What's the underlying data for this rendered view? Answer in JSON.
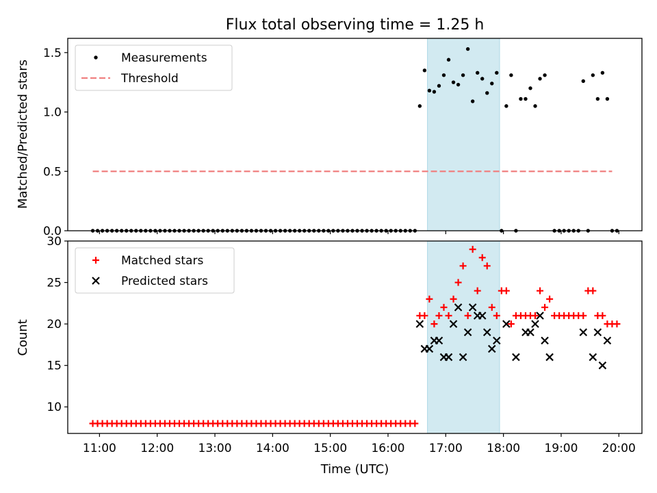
{
  "figure": {
    "title": "Flux total observing time = 1.25 h",
    "xlabel": "Time (UTC)",
    "x_ticks": [
      "11:00",
      "12:00",
      "13:00",
      "14:00",
      "15:00",
      "16:00",
      "17:00",
      "18:00",
      "19:00",
      "20:00"
    ],
    "colors": {
      "threshold": "#f08080",
      "matched": "#ff0000",
      "predicted": "#000000",
      "measurements": "#000000",
      "highlight": "#add8e6"
    }
  },
  "chart_data": [
    {
      "type": "scatter",
      "panel": "top",
      "ylabel": "Matched/Predicted stars",
      "ylim": [
        0,
        1.62
      ],
      "y_ticks": [
        "0.0",
        "0.5",
        "1.0",
        "1.5"
      ],
      "xlim": [
        "10:27",
        "20:24"
      ],
      "highlight_span": [
        "16:41",
        "17:56"
      ],
      "legend_position": "upper-left",
      "series": [
        {
          "name": "Measurements",
          "marker": "dot",
          "points": [
            [
              "10:53",
              0
            ],
            [
              "10:58",
              0
            ],
            [
              "11:03",
              0
            ],
            [
              "11:08",
              0
            ],
            [
              "11:13",
              0
            ],
            [
              "11:18",
              0
            ],
            [
              "11:23",
              0
            ],
            [
              "11:28",
              0
            ],
            [
              "11:33",
              0
            ],
            [
              "11:38",
              0
            ],
            [
              "11:43",
              0
            ],
            [
              "11:48",
              0
            ],
            [
              "11:53",
              0
            ],
            [
              "11:58",
              0
            ],
            [
              "12:03",
              0
            ],
            [
              "12:08",
              0
            ],
            [
              "12:13",
              0
            ],
            [
              "12:18",
              0
            ],
            [
              "12:23",
              0
            ],
            [
              "12:28",
              0
            ],
            [
              "12:33",
              0
            ],
            [
              "12:38",
              0
            ],
            [
              "12:43",
              0
            ],
            [
              "12:48",
              0
            ],
            [
              "12:53",
              0
            ],
            [
              "12:58",
              0
            ],
            [
              "13:03",
              0
            ],
            [
              "13:08",
              0
            ],
            [
              "13:13",
              0
            ],
            [
              "13:18",
              0
            ],
            [
              "13:23",
              0
            ],
            [
              "13:28",
              0
            ],
            [
              "13:33",
              0
            ],
            [
              "13:38",
              0
            ],
            [
              "13:43",
              0
            ],
            [
              "13:48",
              0
            ],
            [
              "13:53",
              0
            ],
            [
              "13:58",
              0
            ],
            [
              "14:03",
              0
            ],
            [
              "14:08",
              0
            ],
            [
              "14:13",
              0
            ],
            [
              "14:18",
              0
            ],
            [
              "14:23",
              0
            ],
            [
              "14:28",
              0
            ],
            [
              "14:33",
              0
            ],
            [
              "14:38",
              0
            ],
            [
              "14:43",
              0
            ],
            [
              "14:48",
              0
            ],
            [
              "14:53",
              0
            ],
            [
              "14:58",
              0
            ],
            [
              "15:03",
              0
            ],
            [
              "15:08",
              0
            ],
            [
              "15:13",
              0
            ],
            [
              "15:18",
              0
            ],
            [
              "15:23",
              0
            ],
            [
              "15:28",
              0
            ],
            [
              "15:33",
              0
            ],
            [
              "15:38",
              0
            ],
            [
              "15:43",
              0
            ],
            [
              "15:48",
              0
            ],
            [
              "15:53",
              0
            ],
            [
              "15:58",
              0
            ],
            [
              "16:03",
              0
            ],
            [
              "16:08",
              0
            ],
            [
              "16:13",
              0
            ],
            [
              "16:18",
              0
            ],
            [
              "16:23",
              0
            ],
            [
              "16:28",
              0
            ],
            [
              "16:33",
              1.05
            ],
            [
              "16:38",
              1.35
            ],
            [
              "16:43",
              1.18
            ],
            [
              "16:48",
              1.17
            ],
            [
              "16:53",
              1.22
            ],
            [
              "16:58",
              1.31
            ],
            [
              "17:03",
              1.44
            ],
            [
              "17:08",
              1.25
            ],
            [
              "17:13",
              1.23
            ],
            [
              "17:18",
              1.31
            ],
            [
              "17:23",
              1.53
            ],
            [
              "17:28",
              1.09
            ],
            [
              "17:33",
              1.33
            ],
            [
              "17:38",
              1.28
            ],
            [
              "17:43",
              1.16
            ],
            [
              "17:48",
              1.24
            ],
            [
              "17:53",
              1.33
            ],
            [
              "17:58",
              0
            ],
            [
              "18:03",
              1.05
            ],
            [
              "18:08",
              1.31
            ],
            [
              "18:13",
              0
            ],
            [
              "18:18",
              1.11
            ],
            [
              "18:23",
              1.11
            ],
            [
              "18:28",
              1.2
            ],
            [
              "18:33",
              1.05
            ],
            [
              "18:38",
              1.28
            ],
            [
              "18:43",
              1.31
            ],
            [
              "18:53",
              0
            ],
            [
              "18:58",
              0
            ],
            [
              "19:03",
              0
            ],
            [
              "19:08",
              0
            ],
            [
              "19:13",
              0
            ],
            [
              "19:18",
              0
            ],
            [
              "19:23",
              1.26
            ],
            [
              "19:28",
              0
            ],
            [
              "19:33",
              1.31
            ],
            [
              "19:38",
              1.11
            ],
            [
              "19:43",
              1.33
            ],
            [
              "19:48",
              1.11
            ],
            [
              "19:53",
              0
            ],
            [
              "19:58",
              0
            ]
          ]
        },
        {
          "name": "Threshold",
          "marker": "dashed-line",
          "points": [
            [
              "10:53",
              0.5
            ],
            [
              "19:53",
              0.5
            ]
          ]
        }
      ]
    },
    {
      "type": "scatter",
      "panel": "bottom",
      "ylabel": "Count",
      "ylim": [
        6.8,
        30
      ],
      "y_ticks": [
        "10",
        "15",
        "20",
        "25",
        "30"
      ],
      "xlim": [
        "10:27",
        "20:24"
      ],
      "highlight_span": [
        "16:41",
        "17:56"
      ],
      "legend_position": "upper-left",
      "series": [
        {
          "name": "Matched stars",
          "marker": "plus",
          "points": [
            [
              "10:53",
              8
            ],
            [
              "10:58",
              8
            ],
            [
              "11:03",
              8
            ],
            [
              "11:08",
              8
            ],
            [
              "11:13",
              8
            ],
            [
              "11:18",
              8
            ],
            [
              "11:23",
              8
            ],
            [
              "11:28",
              8
            ],
            [
              "11:33",
              8
            ],
            [
              "11:38",
              8
            ],
            [
              "11:43",
              8
            ],
            [
              "11:48",
              8
            ],
            [
              "11:53",
              8
            ],
            [
              "11:58",
              8
            ],
            [
              "12:03",
              8
            ],
            [
              "12:08",
              8
            ],
            [
              "12:13",
              8
            ],
            [
              "12:18",
              8
            ],
            [
              "12:23",
              8
            ],
            [
              "12:28",
              8
            ],
            [
              "12:33",
              8
            ],
            [
              "12:38",
              8
            ],
            [
              "12:43",
              8
            ],
            [
              "12:48",
              8
            ],
            [
              "12:53",
              8
            ],
            [
              "12:58",
              8
            ],
            [
              "13:03",
              8
            ],
            [
              "13:08",
              8
            ],
            [
              "13:13",
              8
            ],
            [
              "13:18",
              8
            ],
            [
              "13:23",
              8
            ],
            [
              "13:28",
              8
            ],
            [
              "13:33",
              8
            ],
            [
              "13:38",
              8
            ],
            [
              "13:43",
              8
            ],
            [
              "13:48",
              8
            ],
            [
              "13:53",
              8
            ],
            [
              "13:58",
              8
            ],
            [
              "14:03",
              8
            ],
            [
              "14:08",
              8
            ],
            [
              "14:13",
              8
            ],
            [
              "14:18",
              8
            ],
            [
              "14:23",
              8
            ],
            [
              "14:28",
              8
            ],
            [
              "14:33",
              8
            ],
            [
              "14:38",
              8
            ],
            [
              "14:43",
              8
            ],
            [
              "14:48",
              8
            ],
            [
              "14:53",
              8
            ],
            [
              "14:58",
              8
            ],
            [
              "15:03",
              8
            ],
            [
              "15:08",
              8
            ],
            [
              "15:13",
              8
            ],
            [
              "15:18",
              8
            ],
            [
              "15:23",
              8
            ],
            [
              "15:28",
              8
            ],
            [
              "15:33",
              8
            ],
            [
              "15:38",
              8
            ],
            [
              "15:43",
              8
            ],
            [
              "15:48",
              8
            ],
            [
              "15:53",
              8
            ],
            [
              "15:58",
              8
            ],
            [
              "16:03",
              8
            ],
            [
              "16:08",
              8
            ],
            [
              "16:13",
              8
            ],
            [
              "16:18",
              8
            ],
            [
              "16:23",
              8
            ],
            [
              "16:28",
              8
            ],
            [
              "16:33",
              21
            ],
            [
              "16:38",
              21
            ],
            [
              "16:43",
              23
            ],
            [
              "16:48",
              20
            ],
            [
              "16:53",
              21
            ],
            [
              "16:58",
              22
            ],
            [
              "17:03",
              21
            ],
            [
              "17:08",
              23
            ],
            [
              "17:13",
              25
            ],
            [
              "17:18",
              27
            ],
            [
              "17:23",
              21
            ],
            [
              "17:28",
              29
            ],
            [
              "17:33",
              24
            ],
            [
              "17:38",
              28
            ],
            [
              "17:43",
              27
            ],
            [
              "17:48",
              22
            ],
            [
              "17:53",
              21
            ],
            [
              "17:58",
              24
            ],
            [
              "18:03",
              24
            ],
            [
              "18:08",
              20
            ],
            [
              "18:13",
              21
            ],
            [
              "18:18",
              21
            ],
            [
              "18:23",
              21
            ],
            [
              "18:28",
              21
            ],
            [
              "18:33",
              21
            ],
            [
              "18:38",
              24
            ],
            [
              "18:43",
              22
            ],
            [
              "18:48",
              23
            ],
            [
              "18:53",
              21
            ],
            [
              "18:58",
              21
            ],
            [
              "19:03",
              21
            ],
            [
              "19:08",
              21
            ],
            [
              "19:13",
              21
            ],
            [
              "19:18",
              21
            ],
            [
              "19:23",
              21
            ],
            [
              "19:28",
              24
            ],
            [
              "19:33",
              24
            ],
            [
              "19:38",
              21
            ],
            [
              "19:43",
              21
            ],
            [
              "19:48",
              20
            ],
            [
              "19:53",
              20
            ],
            [
              "19:58",
              20
            ]
          ]
        },
        {
          "name": "Predicted stars",
          "marker": "x",
          "points": [
            [
              "16:33",
              20
            ],
            [
              "16:38",
              17
            ],
            [
              "16:43",
              17
            ],
            [
              "16:48",
              18
            ],
            [
              "16:53",
              18
            ],
            [
              "16:58",
              16
            ],
            [
              "17:03",
              16
            ],
            [
              "17:08",
              20
            ],
            [
              "17:13",
              22
            ],
            [
              "17:18",
              16
            ],
            [
              "17:23",
              19
            ],
            [
              "17:28",
              22
            ],
            [
              "17:33",
              21
            ],
            [
              "17:38",
              21
            ],
            [
              "17:43",
              19
            ],
            [
              "17:48",
              17
            ],
            [
              "17:53",
              18
            ],
            [
              "18:03",
              20
            ],
            [
              "18:13",
              16
            ],
            [
              "18:23",
              19
            ],
            [
              "18:28",
              19
            ],
            [
              "18:33",
              20
            ],
            [
              "18:38",
              21
            ],
            [
              "18:43",
              18
            ],
            [
              "18:48",
              16
            ],
            [
              "19:23",
              19
            ],
            [
              "19:33",
              16
            ],
            [
              "19:38",
              19
            ],
            [
              "19:43",
              15
            ],
            [
              "19:48",
              18
            ]
          ]
        }
      ]
    }
  ]
}
